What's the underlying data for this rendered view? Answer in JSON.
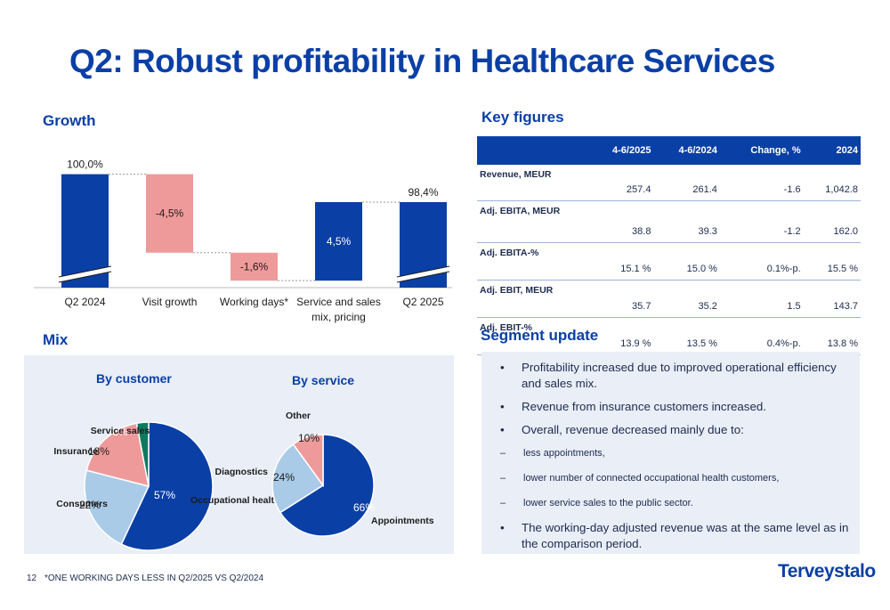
{
  "title": "Q2: Robust profitability in Healthcare Services",
  "growth": {
    "heading": "Growth",
    "chart_data": {
      "type": "bar",
      "subtype": "waterfall",
      "categories": [
        "Q2 2024",
        "Visit growth",
        "Working days*",
        "Service and sales mix, pricing",
        "Q2 2025"
      ],
      "values": [
        100.0,
        -4.5,
        -1.6,
        4.5,
        98.4
      ],
      "labels": [
        "100,0%",
        "-4,5%",
        "-1,6%",
        "4,5%",
        "98,4%"
      ],
      "category_lines": [
        [
          "Q2 2024"
        ],
        [
          "Visit growth"
        ],
        [
          "Working days*"
        ],
        [
          "Service and sales",
          "mix, pricing"
        ],
        [
          "Q2 2025"
        ]
      ],
      "kinds": [
        "total",
        "delta",
        "delta",
        "delta",
        "total"
      ],
      "axis_break": true,
      "colors": {
        "total": "#0a3fa6",
        "negative": "#ef9a9a",
        "positive": "#0a3fa6"
      }
    }
  },
  "mix": {
    "heading": "Mix",
    "chart_data": [
      {
        "type": "pie",
        "title": "By customer",
        "slices": [
          {
            "label": "Occupational health",
            "value": 57,
            "display": "57%",
            "color": "#0a3fa6"
          },
          {
            "label": "Consumers",
            "value": 22,
            "display": "22%",
            "color": "#a9cbe8"
          },
          {
            "label": "Insurance",
            "value": 18,
            "display": "18%",
            "color": "#ef9a9a"
          },
          {
            "label": "Service sales",
            "value": 3,
            "display": "3%",
            "color": "#0d7a5f"
          }
        ]
      },
      {
        "type": "pie",
        "title": "By service",
        "slices": [
          {
            "label": "Appointments",
            "value": 66,
            "display": "66%",
            "color": "#0a3fa6"
          },
          {
            "label": "Diagnostics",
            "value": 24,
            "display": "24%",
            "color": "#a9cbe8"
          },
          {
            "label": "Other",
            "value": 10,
            "display": "10%",
            "color": "#ef9a9a"
          }
        ]
      }
    ]
  },
  "key_figures": {
    "heading": "Key figures",
    "headers": [
      "",
      "4-6/2025",
      "4-6/2024",
      "Change, %",
      "2024"
    ],
    "rows": [
      {
        "label": "Revenue, MEUR",
        "values": [
          "257.4",
          "261.4",
          "-1.6",
          "1,042.8"
        ]
      },
      {
        "label": "Adj. EBITA, MEUR",
        "values": [
          "38.8",
          "39.3",
          "-1.2",
          "162.0"
        ]
      },
      {
        "label": "Adj. EBITA-%",
        "values": [
          "15.1 %",
          "15.0 %",
          "0.1%-p.",
          "15.5 %"
        ]
      },
      {
        "label": "Adj. EBIT, MEUR",
        "values": [
          "35.7",
          "35.2",
          "1.5",
          "143.7"
        ]
      },
      {
        "label": "Adj. EBIT-%",
        "values": [
          "13.9 %",
          "13.5 %",
          "0.4%-p.",
          "13.8 %"
        ]
      }
    ]
  },
  "segment_update": {
    "heading": "Segment update",
    "bullet_glyph": "•",
    "dash_glyph": "–",
    "bullets": [
      "Profitability increased due to improved operational efficiency and sales mix.",
      "Revenue from insurance customers increased.",
      "Overall, revenue decreased mainly due to:"
    ],
    "sub_bullets": [
      "less appointments,",
      "lower number of connected occupational health customers,",
      "lower service sales to the public sector."
    ],
    "last_bullet": "The working-day adjusted revenue was at the same level as in the comparison period."
  },
  "footer": {
    "page_number": "12",
    "footnote": "*ONE WORKING DAYS LESS IN Q2/2025 VS Q2/2024",
    "logo": "Terveystalo"
  }
}
